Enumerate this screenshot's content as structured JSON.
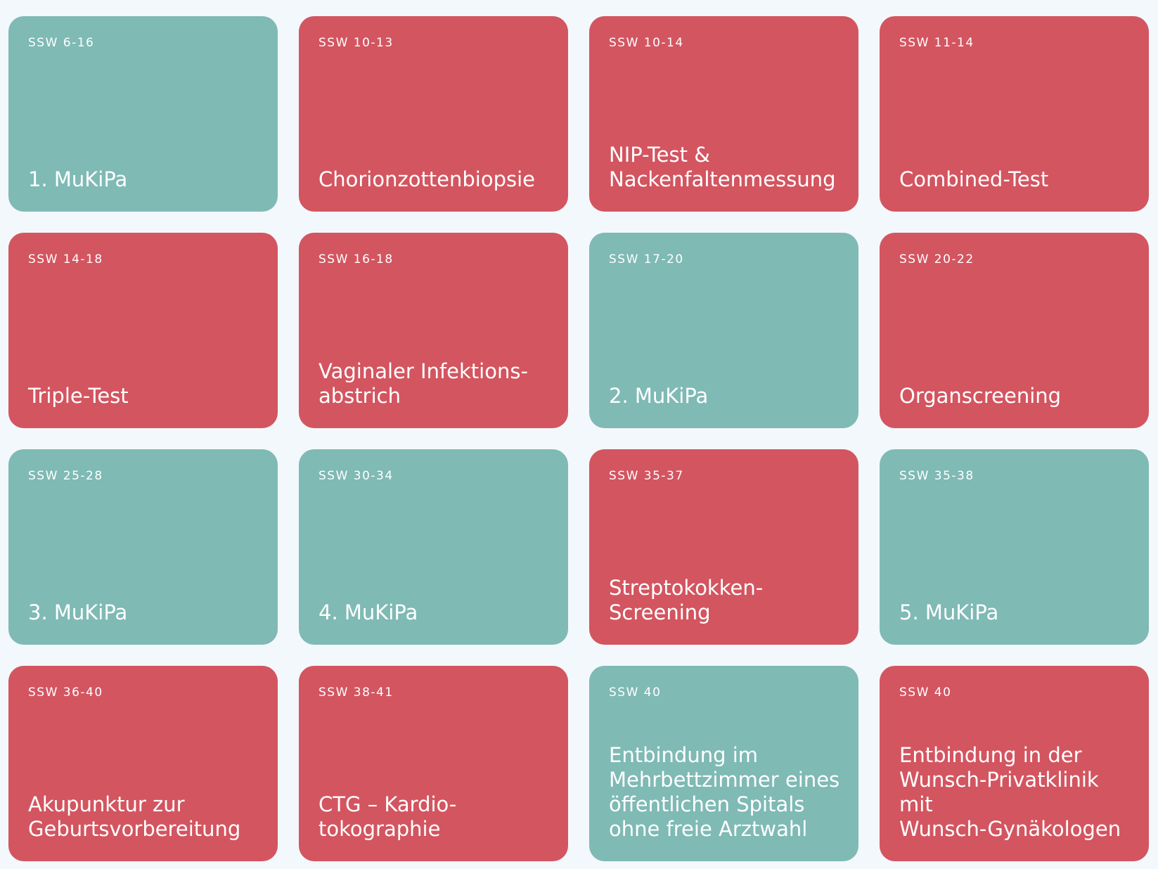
{
  "colors": {
    "background": "#f3f8fc",
    "teal": "#7fbab5",
    "red": "#d35560",
    "text": "#ffffff"
  },
  "cards": [
    {
      "week": "SSW 6-16",
      "title": "1. MuKiPa",
      "color": "teal"
    },
    {
      "week": "SSW 10-13",
      "title": "Chorionzottenbiopsie",
      "color": "red"
    },
    {
      "week": "SSW 10-14",
      "title": "NIP-Test &\nNackenfaltenmessung",
      "color": "red"
    },
    {
      "week": "SSW 11-14",
      "title": "Combined-Test",
      "color": "red"
    },
    {
      "week": "SSW 14-18",
      "title": "Triple-Test",
      "color": "red"
    },
    {
      "week": "SSW 16-18",
      "title": "Vaginaler Infektions-\nabstrich",
      "color": "red"
    },
    {
      "week": "SSW 17-20",
      "title": "2. MuKiPa",
      "color": "teal"
    },
    {
      "week": "SSW 20-22",
      "title": "Organscreening",
      "color": "red"
    },
    {
      "week": "SSW 25-28",
      "title": "3. MuKiPa",
      "color": "teal"
    },
    {
      "week": "SSW 30-34",
      "title": "4. MuKiPa",
      "color": "teal"
    },
    {
      "week": "SSW 35-37",
      "title": "Streptokokken-\nScreening",
      "color": "red"
    },
    {
      "week": "SSW 35-38",
      "title": "5. MuKiPa",
      "color": "teal"
    },
    {
      "week": "SSW 36-40",
      "title": "Akupunktur zur\nGeburtsvorbereitung",
      "color": "red"
    },
    {
      "week": "SSW 38-41",
      "title": "CTG – Kardio-\ntokographie",
      "color": "red"
    },
    {
      "week": "SSW 40",
      "title": "Entbindung im\nMehrbettzimmer eines\nöffentlichen Spitals\nohne freie Arztwahl",
      "color": "teal"
    },
    {
      "week": "SSW 40",
      "title": "Entbindung in der\nWunsch-Privatklinik mit\nWunsch-Gynäkologen",
      "color": "red"
    }
  ]
}
